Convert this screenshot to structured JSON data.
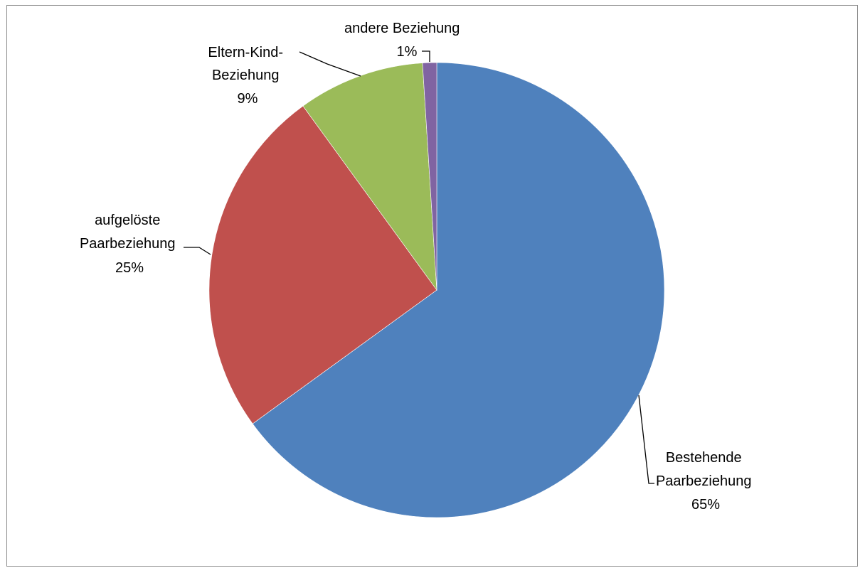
{
  "chart_data": {
    "type": "pie",
    "title": "",
    "start_angle_deg": 0,
    "direction": "clockwise",
    "slices": [
      {
        "name": "Bestehende Paarbeziehung",
        "label_lines": [
          "Bestehende",
          "Paarbeziehung"
        ],
        "percent_label": "65%",
        "value": 65,
        "color": "#4f81bd"
      },
      {
        "name": "aufgelöste Paarbeziehung",
        "label_lines": [
          "aufgelöste",
          "Paarbeziehung"
        ],
        "percent_label": "25%",
        "value": 25,
        "color": "#c0504d"
      },
      {
        "name": "Eltern-Kind-Beziehung",
        "label_lines": [
          "Eltern-Kind-",
          "Beziehung"
        ],
        "percent_label": "9%",
        "value": 9,
        "color": "#9bbb59"
      },
      {
        "name": "andere Beziehung",
        "label_lines": [
          "andere Beziehung"
        ],
        "percent_label": "1%",
        "value": 1,
        "color": "#8064a2"
      }
    ],
    "legend": "none",
    "data_labels": "outside with leader lines"
  }
}
